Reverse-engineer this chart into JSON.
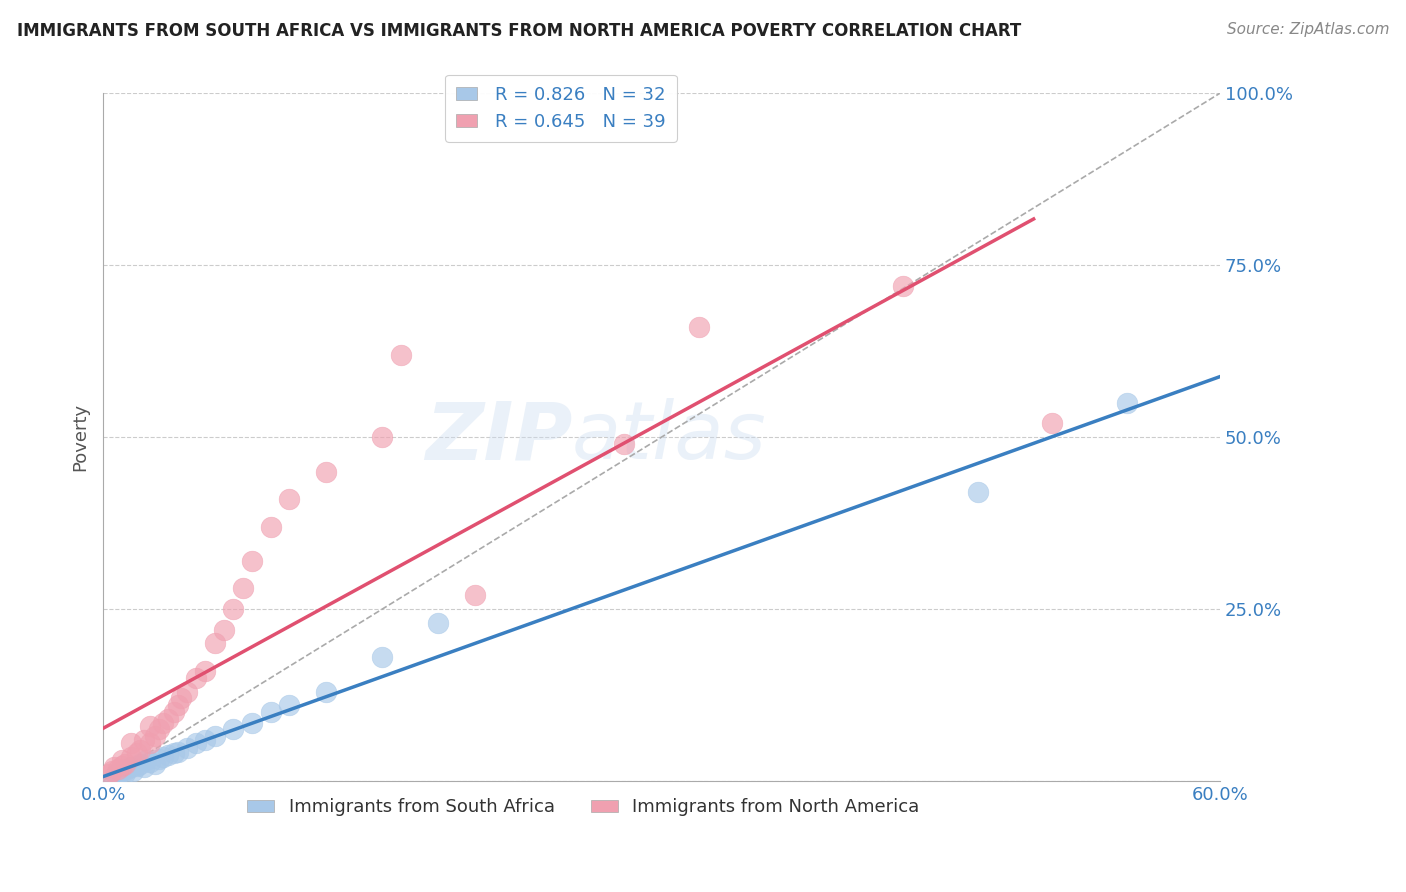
{
  "title": "IMMIGRANTS FROM SOUTH AFRICA VS IMMIGRANTS FROM NORTH AMERICA POVERTY CORRELATION CHART",
  "source": "Source: ZipAtlas.com",
  "ylabel": "Poverty",
  "xlim": [
    0.0,
    0.6
  ],
  "ylim": [
    0.0,
    1.0
  ],
  "yticks": [
    0.0,
    0.25,
    0.5,
    0.75,
    1.0
  ],
  "yticklabels": [
    "",
    "25.0%",
    "50.0%",
    "75.0%",
    "100.0%"
  ],
  "xtick_left_label": "0.0%",
  "xtick_right_label": "60.0%",
  "blue_dot_color": "#a8c8e8",
  "blue_line_color": "#3a7fc1",
  "pink_dot_color": "#f0a0b0",
  "pink_line_color": "#e05070",
  "tick_label_color": "#3a7fc1",
  "blue_R": 0.826,
  "blue_N": 32,
  "pink_R": 0.645,
  "pink_N": 39,
  "legend_label_blue": "Immigrants from South Africa",
  "legend_label_pink": "Immigrants from North America",
  "watermark_zip": "ZIP",
  "watermark_atlas": "atlas",
  "background_color": "#ffffff",
  "grid_color": "#cccccc",
  "blue_scatter_x": [
    0.005,
    0.007,
    0.008,
    0.01,
    0.012,
    0.013,
    0.015,
    0.016,
    0.018,
    0.02,
    0.022,
    0.023,
    0.025,
    0.028,
    0.03,
    0.032,
    0.035,
    0.038,
    0.04,
    0.045,
    0.05,
    0.055,
    0.06,
    0.07,
    0.08,
    0.09,
    0.1,
    0.12,
    0.15,
    0.18,
    0.47,
    0.55
  ],
  "blue_scatter_y": [
    0.005,
    0.01,
    0.008,
    0.015,
    0.012,
    0.018,
    0.02,
    0.015,
    0.022,
    0.025,
    0.02,
    0.03,
    0.028,
    0.025,
    0.032,
    0.035,
    0.038,
    0.04,
    0.042,
    0.048,
    0.055,
    0.06,
    0.065,
    0.075,
    0.085,
    0.1,
    0.11,
    0.13,
    0.18,
    0.23,
    0.42,
    0.55
  ],
  "pink_scatter_x": [
    0.003,
    0.005,
    0.006,
    0.008,
    0.01,
    0.01,
    0.012,
    0.015,
    0.015,
    0.018,
    0.02,
    0.022,
    0.025,
    0.025,
    0.028,
    0.03,
    0.032,
    0.035,
    0.038,
    0.04,
    0.042,
    0.045,
    0.05,
    0.055,
    0.06,
    0.065,
    0.07,
    0.075,
    0.08,
    0.09,
    0.1,
    0.12,
    0.15,
    0.16,
    0.2,
    0.28,
    0.32,
    0.43,
    0.51
  ],
  "pink_scatter_y": [
    0.01,
    0.015,
    0.02,
    0.018,
    0.022,
    0.03,
    0.025,
    0.035,
    0.055,
    0.04,
    0.045,
    0.06,
    0.055,
    0.08,
    0.065,
    0.075,
    0.085,
    0.09,
    0.1,
    0.11,
    0.12,
    0.13,
    0.15,
    0.16,
    0.2,
    0.22,
    0.25,
    0.28,
    0.32,
    0.37,
    0.41,
    0.45,
    0.5,
    0.62,
    0.27,
    0.49,
    0.66,
    0.72,
    0.52
  ]
}
